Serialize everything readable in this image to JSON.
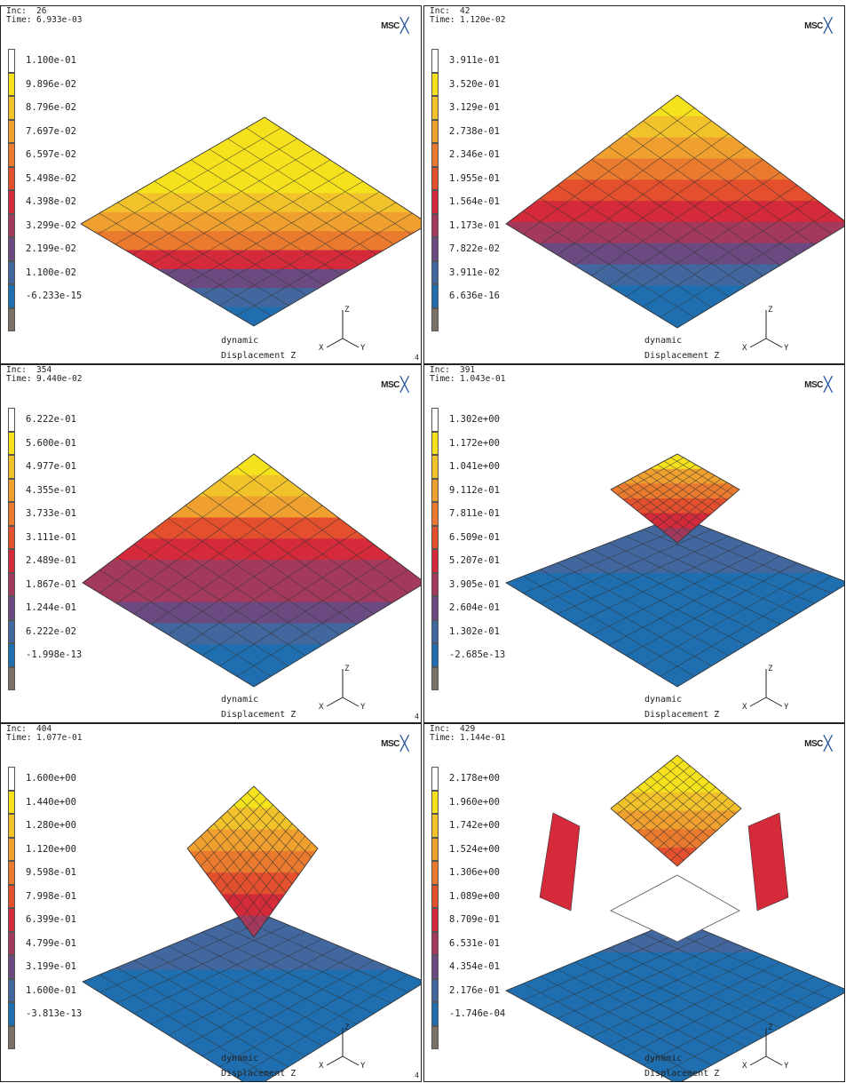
{
  "panels": [
    {
      "inc_label": "Inc:",
      "inc_value": "26",
      "time_label": "Time:",
      "time_value": "6.933e-03",
      "logo": "MSC",
      "caption1": "dynamic",
      "caption2": "Displacement Z",
      "corner": "4",
      "legend": [
        "1.100e-01",
        "9.896e-02",
        "8.796e-02",
        "7.697e-02",
        "6.597e-02",
        "5.498e-02",
        "4.398e-02",
        "3.299e-02",
        "2.199e-02",
        "1.100e-02",
        "-6.233e-15"
      ]
    },
    {
      "inc_label": "Inc:",
      "inc_value": "42",
      "time_label": "Time:",
      "time_value": "1.120e-02",
      "logo": "MSC",
      "caption1": "dynamic",
      "caption2": "Displacement Z",
      "corner": "",
      "legend": [
        "3.911e-01",
        "3.520e-01",
        "3.129e-01",
        "2.738e-01",
        "2.346e-01",
        "1.955e-01",
        "1.564e-01",
        "1.173e-01",
        "7.822e-02",
        "3.911e-02",
        "6.636e-16"
      ]
    },
    {
      "inc_label": "Inc:",
      "inc_value": "354",
      "time_label": "Time:",
      "time_value": "9.440e-02",
      "logo": "MSC",
      "caption1": "dynamic",
      "caption2": "Displacement Z",
      "corner": "4",
      "legend": [
        "6.222e-01",
        "5.600e-01",
        "4.977e-01",
        "4.355e-01",
        "3.733e-01",
        "3.111e-01",
        "2.489e-01",
        "1.867e-01",
        "1.244e-01",
        "6.222e-02",
        "-1.998e-13"
      ]
    },
    {
      "inc_label": "Inc:",
      "inc_value": "391",
      "time_label": "Time:",
      "time_value": "1.043e-01",
      "logo": "MSC",
      "caption1": "dynamic",
      "caption2": "Displacement Z",
      "corner": "",
      "legend": [
        "1.302e+00",
        "1.172e+00",
        "1.041e+00",
        "9.112e-01",
        "7.811e-01",
        "6.509e-01",
        "5.207e-01",
        "3.905e-01",
        "2.604e-01",
        "1.302e-01",
        "-2.685e-13"
      ]
    },
    {
      "inc_label": "Inc:",
      "inc_value": "404",
      "time_label": "Time:",
      "time_value": "1.077e-01",
      "logo": "MSC",
      "caption1": "dynamic",
      "caption2": "Displacement Z",
      "corner": "4",
      "legend": [
        "1.600e+00",
        "1.440e+00",
        "1.280e+00",
        "1.120e+00",
        "9.598e-01",
        "7.998e-01",
        "6.399e-01",
        "4.799e-01",
        "3.199e-01",
        "1.600e-01",
        "-3.813e-13"
      ]
    },
    {
      "inc_label": "Inc:",
      "inc_value": "429",
      "time_label": "Time:",
      "time_value": "1.144e-01",
      "logo": "MSC",
      "caption1": "dynamic",
      "caption2": "Displacement Z",
      "corner": "",
      "legend": [
        "2.178e+00",
        "1.960e+00",
        "1.742e+00",
        "1.524e+00",
        "1.306e+00",
        "1.089e+00",
        "8.709e-01",
        "6.531e-01",
        "4.354e-01",
        "2.176e-01",
        "-1.746e-04"
      ]
    }
  ],
  "legend_colors": [
    "#ffffff",
    "#f6e21c",
    "#f2c22a",
    "#efa02e",
    "#ea7b2e",
    "#e4502d",
    "#d42a3a",
    "#a33a5e",
    "#6a4a80",
    "#41679e",
    "#1f6fb0",
    "#7a7266"
  ],
  "triad_labels": {
    "z": "Z",
    "y": "Y",
    "x": "X"
  },
  "icons": {
    "logo_mark": "msc-logo-icon",
    "triad": "coordinate-triad-icon"
  }
}
